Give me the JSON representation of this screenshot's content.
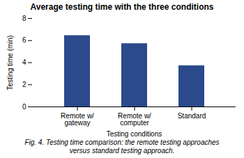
{
  "chart_data": {
    "type": "bar",
    "title": "Average testing time with the three conditions",
    "categories": [
      "Remote w/\ngateway",
      "Remote w/\ncomputer",
      "Standard"
    ],
    "values": [
      6.45,
      5.72,
      3.72
    ],
    "color": "#2b4a8c",
    "xlabel": "Testing conditions",
    "ylabel": "Testing time (min)",
    "ylim": [
      0,
      8
    ],
    "yticks": [
      0,
      2,
      4,
      6,
      8
    ],
    "grid": false,
    "caption": "Fig. 4. Testing time comparison: the remote testing approaches\nversus standard testing approach."
  }
}
